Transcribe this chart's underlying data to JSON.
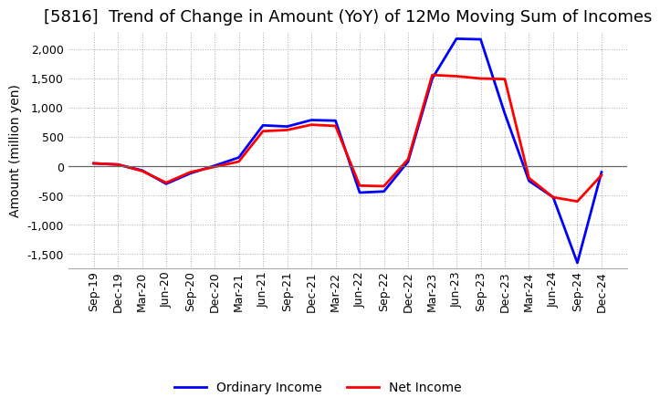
{
  "title": "[5816]  Trend of Change in Amount (YoY) of 12Mo Moving Sum of Incomes",
  "ylabel": "Amount (million yen)",
  "ylim": [
    -1750,
    2300
  ],
  "yticks": [
    -1500,
    -1000,
    -500,
    0,
    500,
    1000,
    1500,
    2000
  ],
  "x_labels": [
    "Sep-19",
    "Dec-19",
    "Mar-20",
    "Jun-20",
    "Sep-20",
    "Dec-20",
    "Mar-21",
    "Jun-21",
    "Sep-21",
    "Dec-21",
    "Mar-22",
    "Jun-22",
    "Sep-22",
    "Dec-22",
    "Mar-23",
    "Jun-23",
    "Sep-23",
    "Dec-23",
    "Mar-24",
    "Jun-24",
    "Sep-24",
    "Dec-24"
  ],
  "ordinary_income": [
    50,
    30,
    -70,
    -300,
    -120,
    10,
    150,
    700,
    680,
    790,
    780,
    -450,
    -430,
    80,
    1500,
    2180,
    2170,
    900,
    -250,
    -530,
    -1650,
    -100
  ],
  "net_income": [
    50,
    30,
    -80,
    -280,
    -100,
    -10,
    80,
    600,
    620,
    710,
    690,
    -330,
    -340,
    120,
    1560,
    1540,
    1500,
    1490,
    -200,
    -530,
    -600,
    -150
  ],
  "ordinary_color": "#0000ff",
  "net_color": "#ff0000",
  "line_width": 2.0,
  "legend_labels": [
    "Ordinary Income",
    "Net Income"
  ],
  "background_color": "#ffffff",
  "grid_color": "#aaaaaa",
  "title_fontsize": 13,
  "label_fontsize": 10,
  "tick_fontsize": 9
}
